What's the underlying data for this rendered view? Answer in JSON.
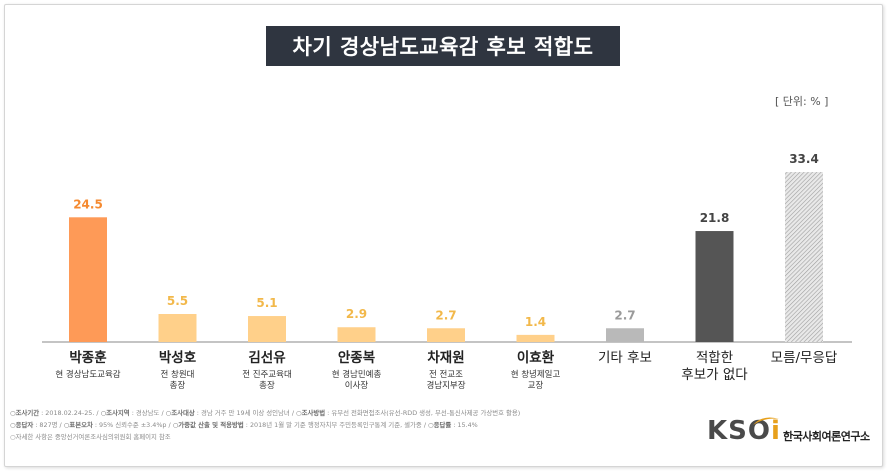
{
  "title": "차기 경상남도교육감 후보 적합도",
  "unit_label": "[ 단위: % ]",
  "colors": {
    "highlight": "#fe9a57",
    "candidate": "#ffd08a",
    "other": "#b9b9b9",
    "none": "#555555",
    "unknown": "#cfcfcf",
    "value_highlight": "#f58a30",
    "value_candidate": "#f2b84a",
    "value_other": "#9a9a9a",
    "value_dark": "#444444"
  },
  "chart_data": {
    "type": "bar",
    "categories": [
      "박종훈",
      "박성호",
      "김선유",
      "안종복",
      "차재원",
      "이효환",
      "기타 후보",
      "적합한 후보가 없다",
      "모름/무응답"
    ],
    "category_lines": [
      [
        "박종훈"
      ],
      [
        "박성호"
      ],
      [
        "김선유"
      ],
      [
        "안종복"
      ],
      [
        "차재원"
      ],
      [
        "이효환"
      ],
      [
        "기타 후보"
      ],
      [
        "적합한",
        "후보가 없다"
      ],
      [
        "모름/무응답"
      ]
    ],
    "descriptions": [
      [
        "현 경상남도교육감"
      ],
      [
        "전 창원대",
        "총장"
      ],
      [
        "전 진주교육대",
        "총장"
      ],
      [
        "현 경남민예총",
        "이사장"
      ],
      [
        "전 전교조",
        "경남지부장"
      ],
      [
        "현 창녕제일고",
        "교장"
      ],
      [],
      [],
      []
    ],
    "values": [
      24.5,
      5.5,
      5.1,
      2.9,
      2.7,
      1.4,
      2.7,
      21.8,
      33.4
    ],
    "value_labels": [
      "24.5",
      "5.5",
      "5.1",
      "2.9",
      "2.7",
      "1.4",
      "2.7",
      "21.8",
      "33.4"
    ],
    "bar_styles": [
      "highlight",
      "candidate",
      "candidate",
      "candidate",
      "candidate",
      "candidate",
      "other",
      "none",
      "unknown"
    ],
    "unknown_hatched": true,
    "ylim": [
      0,
      33.4
    ],
    "grid": false,
    "legend": "none"
  },
  "footer": {
    "line1": [
      {
        "label": "조사기간",
        "value": "2018.02.24-25."
      },
      {
        "label": "조사지역",
        "value": "경상남도"
      },
      {
        "label": "조사대상",
        "value": "경남 거주 만 19세 이상 성인남녀"
      },
      {
        "label": "조사방법",
        "value": "유무선 전화면접조사(유선-RDD 생성, 무선-통신사제공 가상번호 활용)"
      }
    ],
    "line2": [
      {
        "label": "응답자",
        "value": "827명"
      },
      {
        "label": "표본오차",
        "value": "95% 신뢰수준 ±3.4%p"
      },
      {
        "label": "가중값 산출 및 적용방법",
        "value": "2018년 1월 말 기준 행정자치부 주민등록인구통계 기준, 셀가중"
      },
      {
        "label": "응답률",
        "value": "15.4%"
      }
    ],
    "line3": "자세한 사항은 중앙선거여론조사심의위원회 홈페이지 참조"
  },
  "logo": {
    "mark_main": "KSO",
    "mark_i": "i",
    "name": "한국사회여론연구소"
  }
}
